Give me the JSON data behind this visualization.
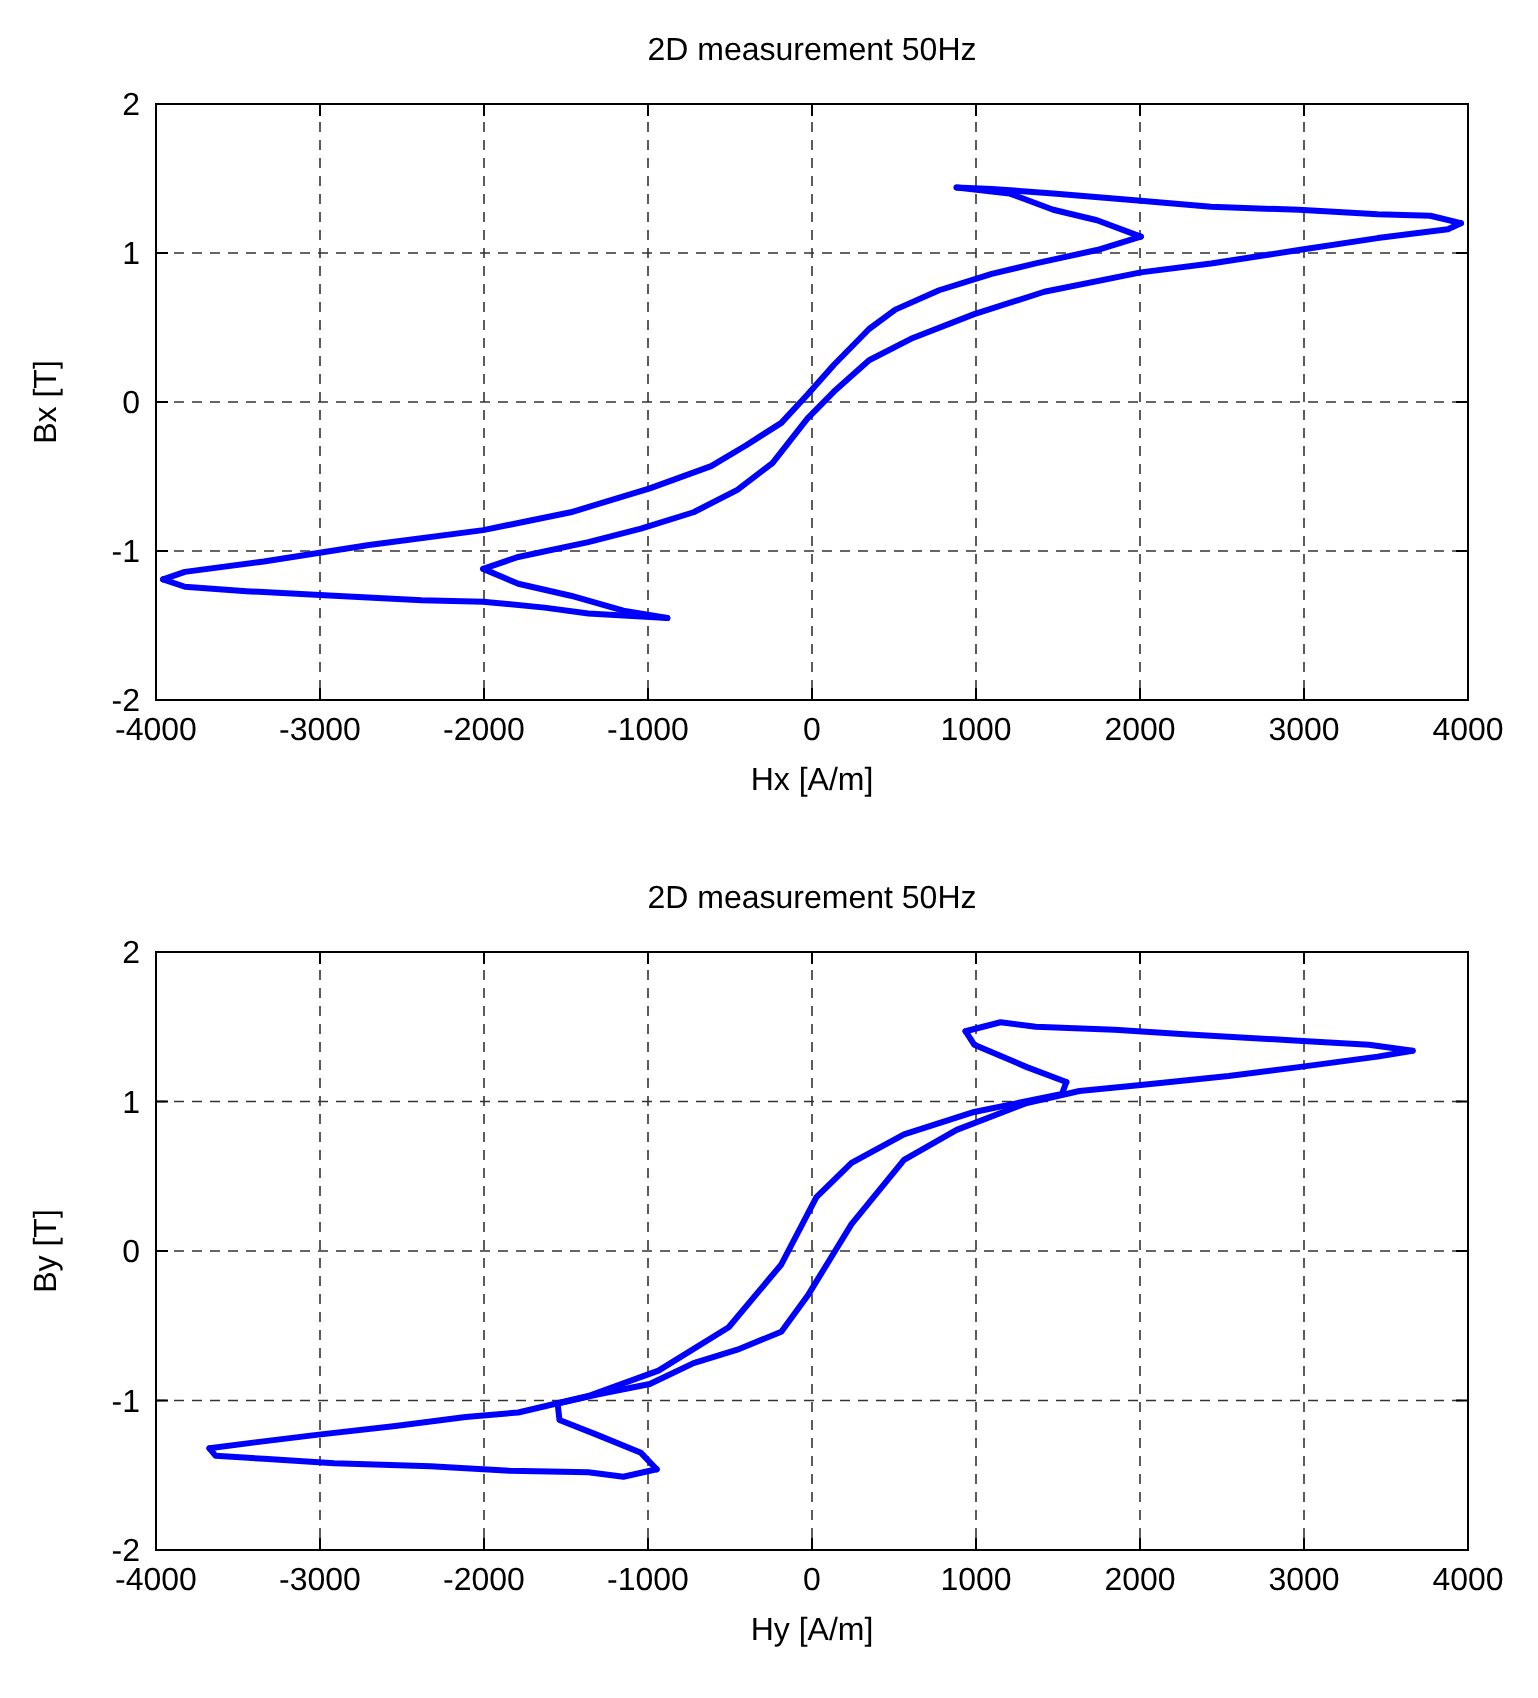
{
  "chart_data": [
    {
      "type": "line",
      "title": "2D measurement 50Hz",
      "xlabel": "Hx [A/m]",
      "ylabel": "Bx [T]",
      "xlim": [
        -4000,
        4000
      ],
      "ylim": [
        -2,
        2
      ],
      "xticks": [
        -4000,
        -3000,
        -2000,
        -1000,
        0,
        1000,
        2000,
        3000,
        4000
      ],
      "yticks": [
        -2,
        -1,
        0,
        1,
        2
      ],
      "grid": true,
      "marker": "none",
      "line_style": "solid",
      "series": [
        {
          "color": "#0000ff",
          "x": [
            882,
            1203,
            1471,
            1738,
            2005
          ],
          "values": [
            1.44,
            1.4,
            1.29,
            1.22,
            1.11
          ]
        },
        {
          "color": "#0000ff",
          "x": [
            2005,
            1738,
            1364,
            1096,
            775,
            508,
            348,
            134,
            -27,
            -187,
            -401,
            -615,
            -989,
            -1471,
            -2005,
            -2701,
            -3342,
            -3824,
            -3957
          ],
          "values": [
            1.11,
            1.02,
            0.93,
            0.86,
            0.75,
            0.62,
            0.49,
            0.25,
            0.05,
            -0.14,
            -0.29,
            -0.43,
            -0.58,
            -0.74,
            -0.86,
            -0.96,
            -1.07,
            -1.14,
            -1.19
          ]
        },
        {
          "color": "#0000ff",
          "x": [
            -3957,
            -3824,
            -3449,
            -2914,
            -2380,
            -2005,
            -1631,
            -1364,
            -882
          ],
          "values": [
            -1.19,
            -1.24,
            -1.27,
            -1.3,
            -1.33,
            -1.34,
            -1.38,
            -1.42,
            -1.45
          ]
        },
        {
          "color": "#0000ff",
          "x": [
            -882,
            -1150,
            -1471,
            -1791,
            -2005
          ],
          "values": [
            -1.45,
            -1.4,
            -1.3,
            -1.22,
            -1.12
          ]
        },
        {
          "color": "#0000ff",
          "x": [
            -2005,
            -1791,
            -1364,
            -1043,
            -722,
            -455,
            -241,
            -27,
            134,
            348,
            615,
            989,
            1417,
            2005,
            2433,
            2968,
            3449,
            3877,
            3957
          ],
          "values": [
            -1.12,
            -1.04,
            -0.94,
            -0.85,
            -0.74,
            -0.59,
            -0.41,
            -0.11,
            0.07,
            0.28,
            0.43,
            0.59,
            0.74,
            0.87,
            0.93,
            1.02,
            1.1,
            1.16,
            1.2
          ]
        },
        {
          "color": "#0000ff",
          "x": [
            3957,
            3770,
            3449,
            2968,
            2433,
            2005,
            1471,
            1096,
            882
          ],
          "values": [
            1.2,
            1.25,
            1.26,
            1.29,
            1.31,
            1.35,
            1.4,
            1.43,
            1.44
          ]
        }
      ]
    },
    {
      "type": "line",
      "title": "2D measurement 50Hz",
      "xlabel": "Hy [A/m]",
      "ylabel": "By [T]",
      "xlim": [
        -4000,
        4000
      ],
      "ylim": [
        -2,
        2
      ],
      "xticks": [
        -4000,
        -3000,
        -2000,
        -1000,
        0,
        1000,
        2000,
        3000,
        4000
      ],
      "yticks": [
        -2,
        -1,
        0,
        1,
        2
      ],
      "grid": true,
      "marker": "none",
      "line_style": "solid",
      "series": [
        {
          "color": "#0000ff",
          "x": [
            936,
            1150,
            1364,
            1845,
            2273,
            2914,
            3396,
            3663
          ],
          "values": [
            1.47,
            1.53,
            1.5,
            1.48,
            1.45,
            1.41,
            1.38,
            1.34
          ]
        },
        {
          "color": "#0000ff",
          "x": [
            3663,
            3449,
            2968,
            2540,
            2005,
            1631,
            1310,
            882,
            561,
            241,
            107,
            -27,
            -187,
            -455,
            -722,
            -989,
            -1310,
            -1551
          ],
          "values": [
            1.34,
            1.3,
            1.23,
            1.17,
            1.11,
            1.07,
            0.99,
            0.81,
            0.61,
            0.18,
            -0.06,
            -0.3,
            -0.54,
            -0.66,
            -0.75,
            -0.89,
            -0.96,
            -1.02
          ]
        },
        {
          "color": "#0000ff",
          "x": [
            -1551,
            -1540,
            -1310,
            -1043,
            -947
          ],
          "values": [
            -1.02,
            -1.13,
            -1.23,
            -1.35,
            -1.46
          ]
        },
        {
          "color": "#0000ff",
          "x": [
            -947,
            -1150,
            -1364,
            -1845,
            -2326,
            -2914,
            -3342,
            -3636,
            -3674
          ],
          "values": [
            -1.46,
            -1.51,
            -1.48,
            -1.47,
            -1.44,
            -1.42,
            -1.39,
            -1.37,
            -1.32
          ]
        },
        {
          "color": "#0000ff",
          "x": [
            -3674,
            -3396,
            -3021,
            -2540,
            -2112,
            -1791,
            -1364,
            -936,
            -508,
            -187,
            27,
            241,
            561,
            989,
            1524,
            1551
          ],
          "values": [
            -1.32,
            -1.28,
            -1.23,
            -1.17,
            -1.11,
            -1.08,
            -0.97,
            -0.8,
            -0.51,
            -0.09,
            0.36,
            0.59,
            0.78,
            0.93,
            1.05,
            1.13
          ]
        },
        {
          "color": "#0000ff",
          "x": [
            1551,
            1310,
            989,
            936
          ],
          "values": [
            1.13,
            1.23,
            1.38,
            1.47
          ]
        }
      ]
    }
  ]
}
